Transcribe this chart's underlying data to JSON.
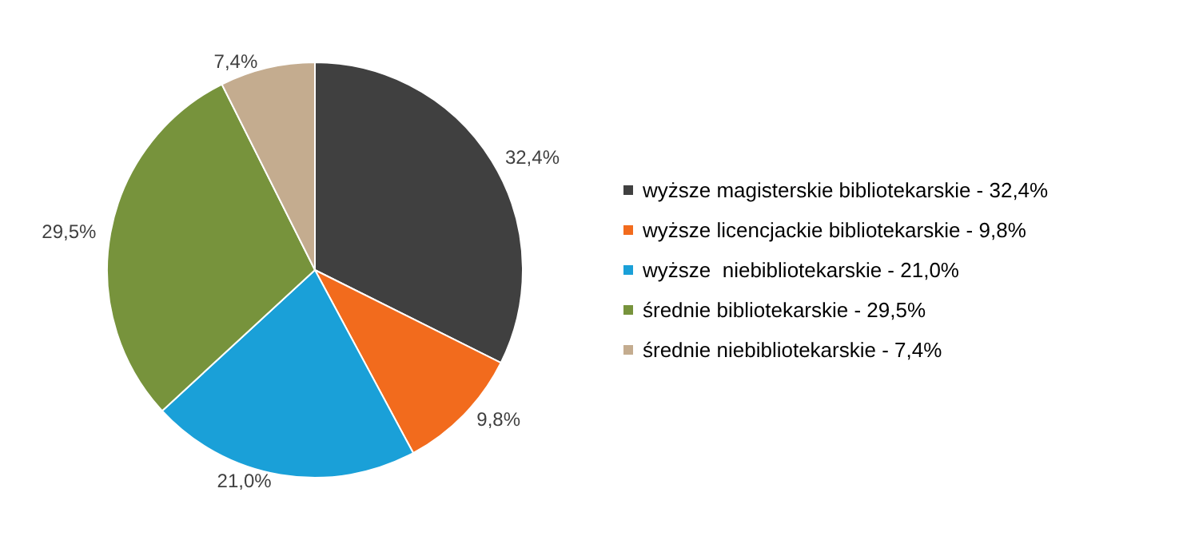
{
  "chart_data": {
    "type": "pie",
    "categories": [
      "wyższe magisterskie bibliotekarskie - 32,4%",
      "wyższe licencjackie bibliotekarskie - 9,8%",
      "wyższe  niebibliotekarskie - 21,0%",
      "średnie bibliotekarskie - 29,5%",
      "średnie niebibliotekarskie - 7,4%"
    ],
    "values": [
      32.4,
      9.8,
      21.0,
      29.5,
      7.4
    ],
    "value_labels": [
      "32,4%",
      "9,8%",
      "21,0%",
      "29,5%",
      "7,4%"
    ],
    "colors": [
      "#404040",
      "#f26b1d",
      "#1aa0d8",
      "#77933c",
      "#c4ac8f"
    ],
    "legend": "right"
  }
}
